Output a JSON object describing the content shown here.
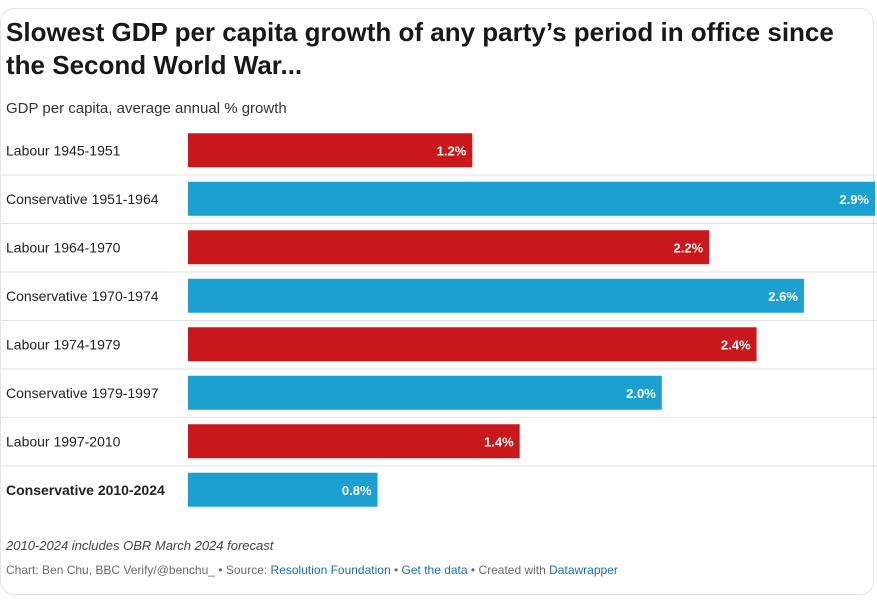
{
  "title": "Slowest GDP per capita growth of any party’s period in office since the Second World War...",
  "subtitle": "GDP per capita, average annual % growth",
  "note": "2010-2024 includes OBR March 2024 forecast",
  "credits": {
    "chart_by": "Chart: Ben Chu, BBC Verify/@benchu_",
    "sep": " • ",
    "source_label": "Source: ",
    "source_link": "Resolution Foundation",
    "get_data": "Get the data",
    "created_with": "Created with ",
    "datawrapper": "Datawrapper"
  },
  "colors": {
    "Labour": "#c8181c",
    "Conservative": "#1ba0d1",
    "value_label": "#ffffff",
    "row_divider": "#e3e3e3"
  },
  "chart_data": {
    "type": "bar",
    "orientation": "horizontal",
    "categories": [
      "Labour 1945-1951",
      "Conservative 1951-1964",
      "Labour 1964-1970",
      "Conservative 1970-1974",
      "Labour 1974-1979",
      "Conservative 1979-1997",
      "Labour 1997-2010",
      "Conservative 2010-2024"
    ],
    "values": [
      1.2,
      2.9,
      2.2,
      2.6,
      2.4,
      2.0,
      1.4,
      0.8
    ],
    "value_labels": [
      "1.2%",
      "2.9%",
      "2.2%",
      "2.6%",
      "2.4%",
      "2.0%",
      "1.4%",
      "0.8%"
    ],
    "party": [
      "Labour",
      "Conservative",
      "Labour",
      "Conservative",
      "Labour",
      "Conservative",
      "Labour",
      "Conservative"
    ],
    "highlight_index": 7,
    "xlim": [
      0,
      2.9
    ],
    "grid": false,
    "legend": "none"
  }
}
